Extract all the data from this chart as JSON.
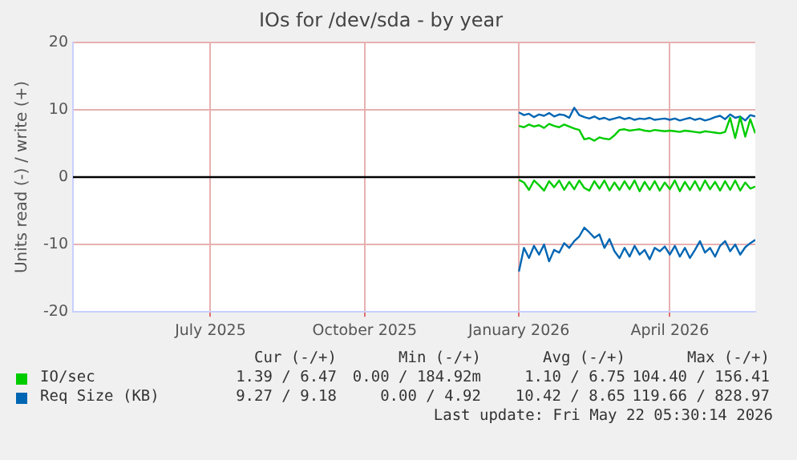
{
  "chart_data": {
    "type": "line",
    "title": "IOs for /dev/sda - by year",
    "ylabel": "Units read (-) / write (+)",
    "x": [
      "2026-01-01",
      "2026-01-04",
      "2026-01-07",
      "2026-01-10",
      "2026-01-13",
      "2026-01-16",
      "2026-01-19",
      "2026-01-22",
      "2026-01-25",
      "2026-01-28",
      "2026-01-31",
      "2026-02-03",
      "2026-02-06",
      "2026-02-09",
      "2026-02-12",
      "2026-02-15",
      "2026-02-18",
      "2026-02-21",
      "2026-02-24",
      "2026-02-27",
      "2026-03-02",
      "2026-03-05",
      "2026-03-08",
      "2026-03-11",
      "2026-03-14",
      "2026-03-17",
      "2026-03-20",
      "2026-03-23",
      "2026-03-26",
      "2026-03-29",
      "2026-04-01",
      "2026-04-04",
      "2026-04-07",
      "2026-04-10",
      "2026-04-13",
      "2026-04-16",
      "2026-04-19",
      "2026-04-22",
      "2026-04-25",
      "2026-04-28",
      "2026-05-01",
      "2026-05-04",
      "2026-05-07",
      "2026-05-10",
      "2026-05-13",
      "2026-05-16",
      "2026-05-19",
      "2026-05-22"
    ],
    "series": [
      {
        "name": "IO/sec",
        "color": "#00cc00",
        "values": [
          7.6,
          7.4,
          7.8,
          7.5,
          7.7,
          7.3,
          7.9,
          7.6,
          7.4,
          7.8,
          7.5,
          7.2,
          7.0,
          5.6,
          5.8,
          5.4,
          5.9,
          5.7,
          5.6,
          6.2,
          7.0,
          7.1,
          6.9,
          7.0,
          7.1,
          6.9,
          6.8,
          7.0,
          6.9,
          6.8,
          6.9,
          6.8,
          6.7,
          6.9,
          6.8,
          6.7,
          6.6,
          6.8,
          6.7,
          6.6,
          6.5,
          6.7,
          8.8,
          5.8,
          8.9,
          6.0,
          8.6,
          6.5
        ]
      },
      {
        "color": "#00cc00",
        "values": [
          -0.4,
          -0.8,
          -1.9,
          -0.5,
          -1.2,
          -2.0,
          -0.6,
          -1.5,
          -0.5,
          -1.9,
          -0.7,
          -1.8,
          -0.5,
          -1.6,
          -2.0,
          -0.6,
          -1.7,
          -0.5,
          -2.0,
          -0.8,
          -1.9,
          -0.6,
          -1.8,
          -0.5,
          -2.1,
          -0.7,
          -1.9,
          -0.6,
          -2.0,
          -0.8,
          -1.8,
          -0.5,
          -2.1,
          -0.7,
          -1.9,
          -0.6,
          -2.0,
          -0.5,
          -1.8,
          -0.7,
          -2.0,
          -0.6,
          -1.9,
          -0.5,
          -2.0,
          -0.8,
          -1.7,
          -1.4
        ]
      },
      {
        "name": "Req Size (KB)",
        "color": "#0066b3",
        "values": [
          9.6,
          9.2,
          9.4,
          8.9,
          9.3,
          9.1,
          9.5,
          9.0,
          9.3,
          9.2,
          8.8,
          10.3,
          9.2,
          8.9,
          8.7,
          9.0,
          8.6,
          8.8,
          8.5,
          8.7,
          8.9,
          8.6,
          8.8,
          8.5,
          8.7,
          8.6,
          8.8,
          8.5,
          8.6,
          8.7,
          8.5,
          8.7,
          8.4,
          8.6,
          8.8,
          8.5,
          8.7,
          8.4,
          8.6,
          8.9,
          9.1,
          8.6,
          9.3,
          8.8,
          9.0,
          8.4,
          9.2,
          9.0
        ]
      },
      {
        "color": "#0066b3",
        "values": [
          -14.0,
          -10.5,
          -12.0,
          -10.2,
          -11.5,
          -10.0,
          -12.5,
          -10.8,
          -11.2,
          -9.8,
          -10.5,
          -9.5,
          -8.8,
          -7.5,
          -8.2,
          -9.0,
          -8.5,
          -10.5,
          -9.2,
          -11.0,
          -12.0,
          -10.5,
          -11.8,
          -10.2,
          -11.5,
          -10.8,
          -12.2,
          -10.5,
          -11.0,
          -10.3,
          -11.5,
          -10.2,
          -11.8,
          -10.5,
          -12.0,
          -10.8,
          -9.5,
          -11.2,
          -10.5,
          -11.8,
          -10.2,
          -9.5,
          -11.0,
          -10.0,
          -11.5,
          -10.4,
          -9.8,
          -9.3
        ]
      }
    ],
    "xlim": [
      "2025-04-10",
      "2026-05-22"
    ],
    "xticks": [
      {
        "value": "2025-07-01",
        "label": "July 2025"
      },
      {
        "value": "2025-10-01",
        "label": "October 2025"
      },
      {
        "value": "2026-01-01",
        "label": "January 2026"
      },
      {
        "value": "2026-04-01",
        "label": "April 2026"
      }
    ],
    "ylim": [
      -20,
      20
    ],
    "yticks": [
      -20,
      -10,
      0,
      10,
      20
    ],
    "ref_lines": [
      {
        "axis": "y",
        "value": 0,
        "color": "#000000"
      }
    ],
    "grid": true,
    "legend": "bottom",
    "marker": "none",
    "line_style": "solid",
    "annotations": [
      "Cur (-/+)",
      "Min (-/+)",
      "Avg (-/+)",
      "Max (-/+)",
      "1.39 / 6.47",
      "0.00 / 184.92m",
      "1.10 / 6.75",
      "104.40 / 156.41",
      "9.27 / 9.18",
      "0.00 / 4.92",
      "10.42 / 8.65",
      "119.66 / 828.97",
      "Last update: Fri May 22 05:30:14 2026"
    ]
  }
}
